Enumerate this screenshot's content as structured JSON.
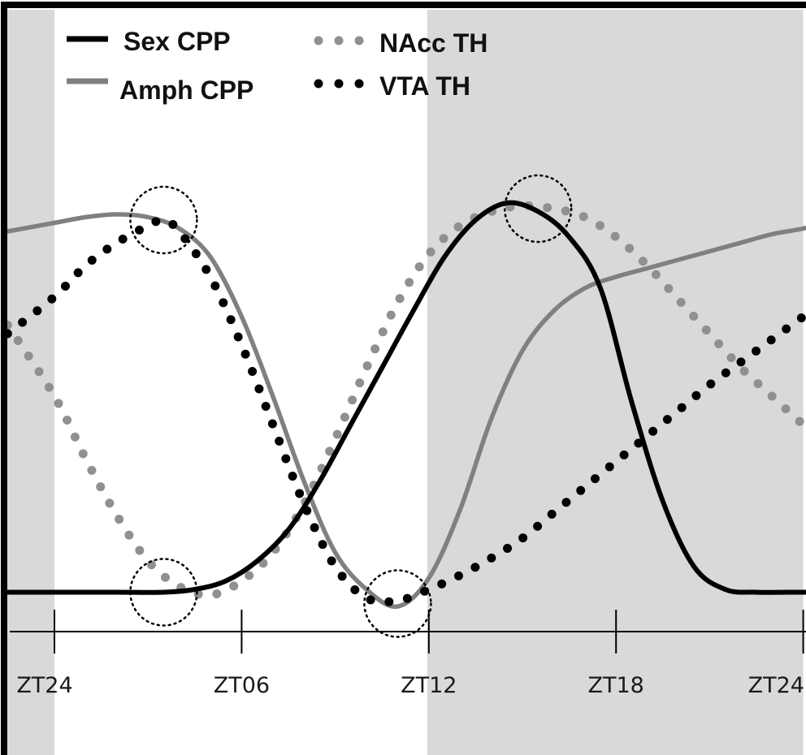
{
  "chart_data": {
    "type": "line",
    "title": "",
    "xlabel": "",
    "ylabel": "",
    "xlim": [
      -1.5,
      24.6
    ],
    "ylim": [
      -0.1,
      1.6
    ],
    "x_ticks": [
      0,
      6,
      12,
      18,
      24
    ],
    "x_tick_labels": [
      "ZT24",
      "ZT06",
      "ZT12",
      "ZT18",
      "ZT24"
    ],
    "dark_phases": [
      [
        -1.5,
        0
      ],
      [
        12,
        24
      ]
    ],
    "legend_position": "top-left",
    "series": [
      {
        "name": "Sex CPP",
        "style": "solid",
        "color": "#000000",
        "x": [
          -1.5,
          0,
          2,
          3.5,
          4.5,
          5.5,
          6.5,
          7.5,
          8.5,
          9.5,
          10.5,
          11.5,
          12.5,
          13.5,
          14.5,
          15.5,
          16.5,
          17.5,
          18.5,
          19.5,
          20.5,
          21.5,
          22.5,
          23.5,
          24.6
        ],
        "values": [
          0.01,
          0.01,
          0.01,
          0.01,
          0.02,
          0.05,
          0.12,
          0.23,
          0.4,
          0.6,
          0.8,
          1.0,
          1.19,
          1.32,
          1.38,
          1.35,
          1.26,
          1.08,
          0.68,
          0.33,
          0.1,
          0.02,
          0.01,
          0.01,
          0.01
        ]
      },
      {
        "name": "Amph CPP",
        "style": "solid",
        "color": "#808080",
        "x": [
          -1.5,
          0,
          1,
          2,
          3,
          4,
          5,
          6,
          7,
          8,
          9,
          10,
          11,
          12,
          13,
          14,
          15,
          16,
          17,
          18,
          19,
          20,
          21,
          22,
          23,
          24,
          24.6
        ],
        "values": [
          1.28,
          1.31,
          1.33,
          1.34,
          1.33,
          1.29,
          1.19,
          0.98,
          0.7,
          0.4,
          0.15,
          0.02,
          -0.04,
          0.06,
          0.3,
          0.62,
          0.86,
          1.0,
          1.08,
          1.12,
          1.15,
          1.18,
          1.21,
          1.24,
          1.27,
          1.29,
          1.31
        ]
      },
      {
        "name": "NAcc TH",
        "style": "dotted",
        "color": "#909090",
        "x": [
          -1.5,
          0,
          1,
          2,
          3,
          4,
          5,
          6,
          7,
          8,
          9,
          10,
          11,
          12,
          13,
          14,
          15,
          16,
          17,
          18,
          19,
          20,
          21,
          22,
          23,
          24,
          24.6
        ],
        "values": [
          0.95,
          0.7,
          0.48,
          0.28,
          0.12,
          0.03,
          0.0,
          0.05,
          0.15,
          0.32,
          0.55,
          0.8,
          1.03,
          1.2,
          1.3,
          1.35,
          1.37,
          1.36,
          1.33,
          1.26,
          1.16,
          1.04,
          0.92,
          0.8,
          0.7,
          0.6,
          0.55
        ]
      },
      {
        "name": "VTA TH",
        "style": "dotted",
        "color": "#000000",
        "x": [
          -1.5,
          0,
          1,
          2,
          3,
          3.5,
          4,
          5,
          6,
          7,
          8,
          9,
          10,
          11,
          12,
          13,
          14,
          15,
          16,
          17,
          18,
          19,
          20,
          21,
          22,
          23,
          24,
          24.6
        ],
        "values": [
          0.92,
          1.05,
          1.16,
          1.24,
          1.3,
          1.32,
          1.28,
          1.12,
          0.88,
          0.6,
          0.32,
          0.1,
          -0.01,
          -0.02,
          0.02,
          0.07,
          0.13,
          0.2,
          0.29,
          0.38,
          0.47,
          0.56,
          0.65,
          0.74,
          0.82,
          0.9,
          0.98,
          1.02
        ]
      }
    ],
    "highlight_circles": [
      {
        "x": 3.5,
        "y": 1.32
      },
      {
        "x": 3.5,
        "y": 0.01
      },
      {
        "x": 11,
        "y": -0.03
      },
      {
        "x": 15.5,
        "y": 1.36
      }
    ],
    "colors": {
      "background": "#ffffff",
      "dark_phase": "#d9d9d9",
      "frame": "#000000"
    }
  }
}
